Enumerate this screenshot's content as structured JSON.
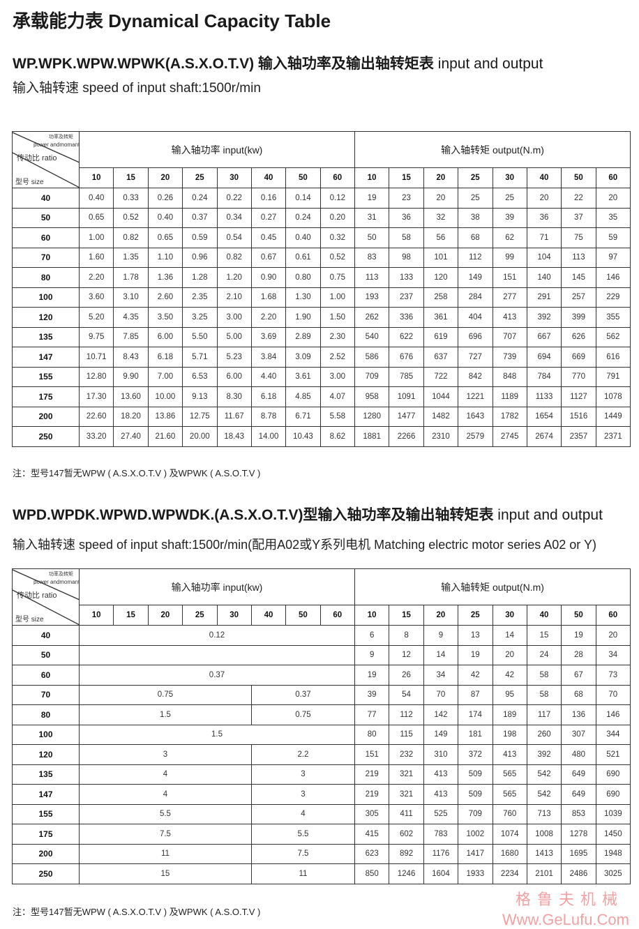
{
  "title": "承载能力表 Dynamical Capacity Table",
  "section1": {
    "heading_bold": "WP.WPK.WPW.WPWK(A.S.X.O.T.V) 输入轴功率及输出轴转矩表",
    "heading_normal": " input and output",
    "speed_line": "输入轴转速  speed of input shaft:1500r/min",
    "note": "注：型号147暂无WPW ( A.S.X.O.T.V ) 及WPWK ( A.S.O.T.V )"
  },
  "section2": {
    "heading_bold": "WPD.WPDK.WPWD.WPWDK.(A.S.X.O.T.V)型输入轴功率及输出轴转矩表",
    "heading_normal": "  input and output",
    "speed_line": "输入轴转速 speed of input shaft:1500r/min(配用A02或Y系列电机 Matching electric motor series A02 or Y)",
    "note": "注：型号147暂无WPW ( A.S.X.O.T.V ) 及WPWK ( A.S.O.T.V )"
  },
  "diag_header": {
    "power_cn": "功率及转矩",
    "power_en": "power andmomant",
    "ratio": "传动比  ratio",
    "size": "型号  size"
  },
  "input_header": "输入轴功率  input(kw)",
  "output_header": "输入轴转矩  output(N.m)",
  "ratios": [
    "10",
    "15",
    "20",
    "25",
    "30",
    "40",
    "50",
    "60"
  ],
  "sizes": [
    "40",
    "50",
    "60",
    "70",
    "80",
    "100",
    "120",
    "135",
    "147",
    "155",
    "175",
    "200",
    "250"
  ],
  "table1": {
    "input": [
      [
        "0.40",
        "0.33",
        "0.26",
        "0.24",
        "0.22",
        "0.16",
        "0.14",
        "0.12"
      ],
      [
        "0.65",
        "0.52",
        "0.40",
        "0.37",
        "0.34",
        "0.27",
        "0.24",
        "0.20"
      ],
      [
        "1.00",
        "0.82",
        "0.65",
        "0.59",
        "0.54",
        "0.45",
        "0.40",
        "0.32"
      ],
      [
        "1.60",
        "1.35",
        "1.10",
        "0.96",
        "0.82",
        "0.67",
        "0.61",
        "0.52"
      ],
      [
        "2.20",
        "1.78",
        "1.36",
        "1.28",
        "1.20",
        "0.90",
        "0.80",
        "0.75"
      ],
      [
        "3.60",
        "3.10",
        "2.60",
        "2.35",
        "2.10",
        "1.68",
        "1.30",
        "1.00"
      ],
      [
        "5.20",
        "4.35",
        "3.50",
        "3.25",
        "3.00",
        "2.20",
        "1.90",
        "1.50"
      ],
      [
        "9.75",
        "7.85",
        "6.00",
        "5.50",
        "5.00",
        "3.69",
        "2.89",
        "2.30"
      ],
      [
        "10.71",
        "8.43",
        "6.18",
        "5.71",
        "5.23",
        "3.84",
        "3.09",
        "2.52"
      ],
      [
        "12.80",
        "9.90",
        "7.00",
        "6.53",
        "6.00",
        "4.40",
        "3.61",
        "3.00"
      ],
      [
        "17.30",
        "13.60",
        "10.00",
        "9.13",
        "8.30",
        "6.18",
        "4.85",
        "4.07"
      ],
      [
        "22.60",
        "18.20",
        "13.86",
        "12.75",
        "11.67",
        "8.78",
        "6.71",
        "5.58"
      ],
      [
        "33.20",
        "27.40",
        "21.60",
        "20.00",
        "18.43",
        "14.00",
        "10.43",
        "8.62"
      ]
    ],
    "output": [
      [
        "19",
        "23",
        "20",
        "25",
        "25",
        "20",
        "22",
        "20"
      ],
      [
        "31",
        "36",
        "32",
        "38",
        "39",
        "36",
        "37",
        "35"
      ],
      [
        "50",
        "58",
        "56",
        "68",
        "62",
        "71",
        "75",
        "59"
      ],
      [
        "83",
        "98",
        "101",
        "112",
        "99",
        "104",
        "113",
        "97"
      ],
      [
        "113",
        "133",
        "120",
        "149",
        "151",
        "140",
        "145",
        "146"
      ],
      [
        "193",
        "237",
        "258",
        "284",
        "277",
        "291",
        "257",
        "229"
      ],
      [
        "262",
        "336",
        "361",
        "404",
        "413",
        "392",
        "399",
        "355"
      ],
      [
        "540",
        "622",
        "619",
        "696",
        "707",
        "667",
        "626",
        "562"
      ],
      [
        "586",
        "676",
        "637",
        "727",
        "739",
        "694",
        "669",
        "616"
      ],
      [
        "709",
        "785",
        "722",
        "842",
        "848",
        "784",
        "770",
        "791"
      ],
      [
        "958",
        "1091",
        "1044",
        "1221",
        "1189",
        "1133",
        "1127",
        "1078"
      ],
      [
        "1280",
        "1477",
        "1482",
        "1643",
        "1782",
        "1654",
        "1516",
        "1449"
      ],
      [
        "1881",
        "2266",
        "2310",
        "2579",
        "2745",
        "2674",
        "2357",
        "2371"
      ]
    ]
  },
  "table2": {
    "input": [
      [
        {
          "value": "0.12",
          "span": 8
        }
      ],
      [
        {
          "value": "",
          "span": 8
        }
      ],
      [
        {
          "value": "0.37",
          "span": 8
        }
      ],
      [
        {
          "value": "0.75",
          "span": 5
        },
        {
          "value": "0.37",
          "span": 3
        }
      ],
      [
        {
          "value": "1.5",
          "span": 5
        },
        {
          "value": "0.75",
          "span": 3
        }
      ],
      [
        {
          "value": "1.5",
          "span": 8
        }
      ],
      [
        {
          "value": "3",
          "span": 5
        },
        {
          "value": "2.2",
          "span": 3
        }
      ],
      [
        {
          "value": "4",
          "span": 5
        },
        {
          "value": "3",
          "span": 3
        }
      ],
      [
        {
          "value": "4",
          "span": 5
        },
        {
          "value": "3",
          "span": 3
        }
      ],
      [
        {
          "value": "5.5",
          "span": 5
        },
        {
          "value": "4",
          "span": 3
        }
      ],
      [
        {
          "value": "7.5",
          "span": 5
        },
        {
          "value": "5.5",
          "span": 3
        }
      ],
      [
        {
          "value": "11",
          "span": 5
        },
        {
          "value": "7.5",
          "span": 3
        }
      ],
      [
        {
          "value": "15",
          "span": 5
        },
        {
          "value": "11",
          "span": 3
        }
      ]
    ],
    "output": [
      [
        "6",
        "8",
        "9",
        "13",
        "14",
        "15",
        "19",
        "20"
      ],
      [
        "9",
        "12",
        "14",
        "19",
        "20",
        "24",
        "28",
        "34"
      ],
      [
        "19",
        "26",
        "34",
        "42",
        "42",
        "58",
        "67",
        "73"
      ],
      [
        "39",
        "54",
        "70",
        "87",
        "95",
        "58",
        "68",
        "70"
      ],
      [
        "77",
        "112",
        "142",
        "174",
        "189",
        "117",
        "136",
        "146"
      ],
      [
        "80",
        "115",
        "149",
        "181",
        "198",
        "260",
        "307",
        "344"
      ],
      [
        "151",
        "232",
        "310",
        "372",
        "413",
        "392",
        "480",
        "521"
      ],
      [
        "219",
        "321",
        "413",
        "509",
        "565",
        "542",
        "649",
        "690"
      ],
      [
        "219",
        "321",
        "413",
        "509",
        "565",
        "542",
        "649",
        "690"
      ],
      [
        "305",
        "411",
        "525",
        "709",
        "760",
        "713",
        "853",
        "1039"
      ],
      [
        "415",
        "602",
        "783",
        "1002",
        "1074",
        "1008",
        "1278",
        "1450"
      ],
      [
        "623",
        "892",
        "1176",
        "1417",
        "1680",
        "1413",
        "1695",
        "1948"
      ],
      [
        "850",
        "1246",
        "1604",
        "1933",
        "2234",
        "2101",
        "2486",
        "3025"
      ]
    ]
  },
  "watermark": {
    "cn": "格鲁夫机械",
    "url": "Www.GeLufu.Com"
  },
  "colors": {
    "watermark": "#f4a0a0",
    "grid": "#333333"
  }
}
